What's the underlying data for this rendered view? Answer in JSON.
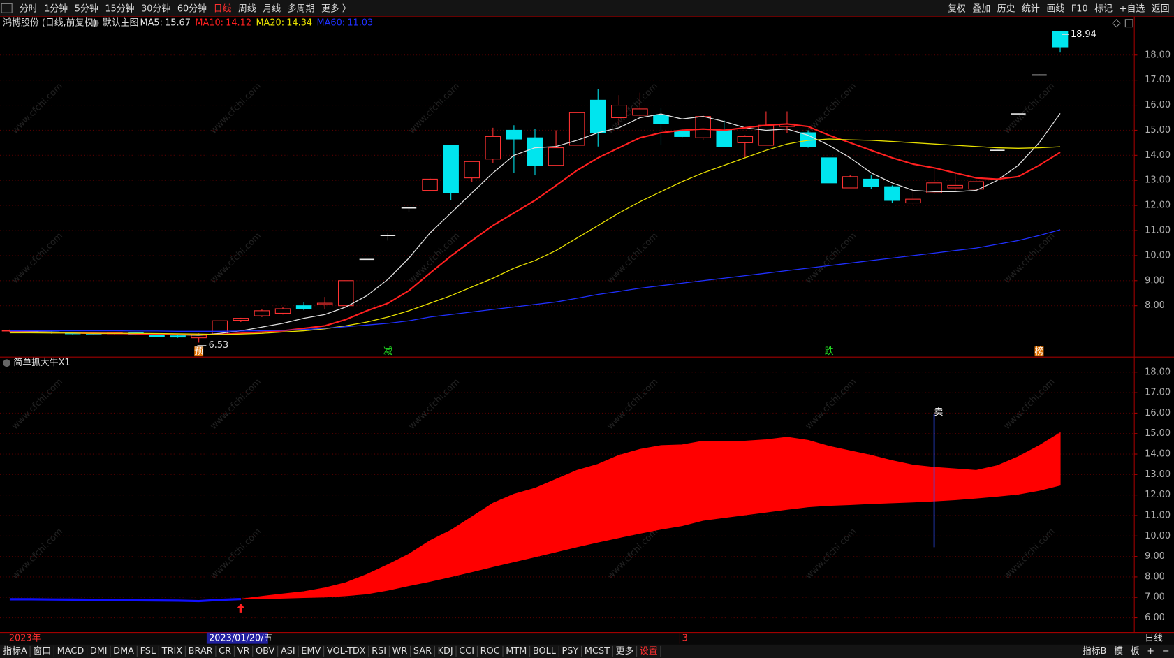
{
  "toolbar": {
    "left": [
      "分时",
      "1分钟",
      "5分钟",
      "15分钟",
      "30分钟",
      "60分钟",
      "日线",
      "周线",
      "月线",
      "多周期",
      "更多 〉"
    ],
    "active": "日线",
    "right": [
      "复权",
      "叠加",
      "历史",
      "统计",
      "画线",
      "F10",
      "标记",
      "+自选",
      "返回"
    ]
  },
  "watermark": "www.cfchi.com",
  "chart_data": [
    {
      "type": "candlestick",
      "title": "鸿博股份 (日线,前复权)",
      "subtitle": "默认主图",
      "open": [
        7.0,
        7.0,
        6.95,
        6.92,
        6.9,
        6.88,
        6.92,
        6.85,
        6.8,
        6.72,
        6.88,
        7.42,
        7.6,
        7.7,
        8.0,
        8.05,
        8.0,
        9.85,
        10.8,
        11.9,
        12.6,
        14.4,
        13.1,
        13.85,
        15.0,
        14.7,
        13.6,
        14.4,
        16.2,
        15.5,
        15.6,
        15.6,
        14.95,
        14.7,
        15.0,
        14.5,
        14.4,
        15.15,
        14.9,
        13.9,
        12.7,
        13.05,
        12.75,
        12.1,
        12.5,
        12.7,
        12.65,
        14.2,
        15.65,
        17.2,
        18.94
      ],
      "high": [
        7.05,
        7.02,
        6.98,
        6.95,
        6.95,
        6.95,
        6.95,
        6.88,
        6.85,
        6.9,
        7.4,
        7.52,
        7.85,
        7.95,
        8.15,
        8.35,
        9.0,
        9.85,
        10.9,
        11.95,
        13.1,
        14.4,
        13.75,
        15.1,
        15.2,
        15.05,
        15.0,
        15.7,
        16.65,
        16.4,
        16.5,
        15.9,
        15.05,
        15.6,
        15.4,
        14.8,
        15.75,
        15.75,
        15.0,
        13.9,
        13.2,
        13.2,
        12.8,
        12.6,
        13.45,
        13.3,
        12.95,
        14.22,
        15.67,
        17.22,
        18.94
      ],
      "low": [
        6.95,
        6.92,
        6.88,
        6.85,
        6.85,
        6.85,
        6.82,
        6.75,
        6.72,
        6.53,
        6.83,
        7.35,
        7.55,
        7.65,
        7.82,
        7.85,
        7.95,
        9.85,
        10.6,
        11.75,
        12.6,
        12.2,
        12.95,
        13.7,
        13.3,
        13.2,
        13.6,
        14.4,
        14.35,
        15.2,
        15.55,
        14.4,
        14.7,
        14.6,
        14.35,
        13.9,
        14.4,
        14.9,
        14.3,
        12.9,
        12.7,
        12.65,
        12.1,
        12.0,
        12.45,
        12.6,
        12.55,
        14.2,
        15.65,
        17.2,
        18.1
      ],
      "close": [
        7.02,
        6.95,
        6.92,
        6.88,
        6.88,
        6.93,
        6.85,
        6.78,
        6.75,
        6.82,
        7.4,
        7.5,
        7.8,
        7.88,
        7.88,
        8.1,
        9.0,
        9.85,
        10.8,
        11.9,
        13.05,
        12.5,
        13.75,
        14.75,
        14.65,
        13.6,
        14.3,
        15.7,
        14.9,
        16.0,
        15.85,
        15.25,
        14.75,
        15.55,
        14.35,
        14.75,
        15.2,
        15.25,
        14.35,
        12.9,
        13.15,
        12.75,
        12.2,
        12.25,
        12.9,
        12.8,
        12.95,
        14.2,
        15.65,
        17.2,
        18.3
      ],
      "up_color": "#ff3232",
      "down_color": "#00e5ee",
      "flat_color": "#e8e8e8",
      "series": [
        {
          "name": "MA5:",
          "color": "#e0e0e0",
          "values": [
            6.98,
            6.97,
            6.95,
            6.93,
            6.91,
            6.9,
            6.89,
            6.87,
            6.84,
            6.82,
            6.9,
            7.0,
            7.15,
            7.3,
            7.5,
            7.65,
            7.95,
            8.4,
            9.05,
            9.9,
            10.9,
            11.7,
            12.5,
            13.3,
            14.0,
            14.3,
            14.35,
            14.6,
            14.9,
            15.1,
            15.5,
            15.65,
            15.45,
            15.55,
            15.35,
            15.1,
            15.0,
            15.05,
            14.8,
            14.4,
            13.9,
            13.3,
            12.9,
            12.6,
            12.55,
            12.55,
            12.6,
            13.0,
            13.6,
            14.5,
            15.67
          ]
        },
        {
          "name": "MA10:",
          "color": "#ff2020",
          "values": [
            6.95,
            6.94,
            6.93,
            6.92,
            6.9,
            6.9,
            6.88,
            6.87,
            6.86,
            6.85,
            6.85,
            6.9,
            6.95,
            7.0,
            7.1,
            7.2,
            7.45,
            7.8,
            8.1,
            8.6,
            9.3,
            9.98,
            10.6,
            11.2,
            11.7,
            12.2,
            12.8,
            13.4,
            13.9,
            14.3,
            14.7,
            14.9,
            15.0,
            15.05,
            15.0,
            15.1,
            15.2,
            15.25,
            15.15,
            14.8,
            14.5,
            14.2,
            13.9,
            13.65,
            13.5,
            13.3,
            13.1,
            13.05,
            13.15,
            13.6,
            14.12
          ]
        },
        {
          "name": "MA20:",
          "color": "#e8e000",
          "values": [
            6.92,
            6.92,
            6.91,
            6.91,
            6.9,
            6.9,
            6.9,
            6.89,
            6.88,
            6.87,
            6.85,
            6.87,
            6.9,
            6.95,
            7.0,
            7.08,
            7.2,
            7.35,
            7.55,
            7.8,
            8.1,
            8.4,
            8.75,
            9.1,
            9.5,
            9.8,
            10.2,
            10.7,
            11.2,
            11.7,
            12.15,
            12.55,
            12.95,
            13.3,
            13.6,
            13.9,
            14.2,
            14.45,
            14.6,
            14.65,
            14.62,
            14.6,
            14.55,
            14.5,
            14.45,
            14.4,
            14.35,
            14.3,
            14.28,
            14.3,
            14.34
          ]
        },
        {
          "name": "MA60:",
          "color": "#2030ff",
          "values": [
            7.0,
            7.0,
            7.0,
            7.0,
            7.0,
            7.0,
            6.99,
            6.99,
            6.98,
            6.98,
            6.98,
            6.99,
            7.0,
            7.02,
            7.05,
            7.1,
            7.16,
            7.23,
            7.3,
            7.4,
            7.55,
            7.65,
            7.75,
            7.85,
            7.95,
            8.05,
            8.15,
            8.3,
            8.45,
            8.57,
            8.7,
            8.8,
            8.9,
            9.0,
            9.1,
            9.2,
            9.3,
            9.4,
            9.5,
            9.6,
            9.7,
            9.8,
            9.9,
            10.0,
            10.1,
            10.2,
            10.3,
            10.45,
            10.6,
            10.8,
            11.03
          ]
        }
      ],
      "markers": [
        {
          "label": "预",
          "color": "#e07000",
          "boxed": true
        },
        {
          "label": "减",
          "color": "#22dd22",
          "boxed": false
        },
        {
          "label": "跌",
          "color": "#22dd22",
          "boxed": false
        },
        {
          "label": "榜",
          "color": "#e07000",
          "boxed": true
        }
      ],
      "ylim": [
        6.4,
        19.0
      ],
      "yticks": [
        {
          "value": 8,
          "label": "8.00"
        },
        {
          "value": 9,
          "label": "9.00"
        },
        {
          "value": 10,
          "label": "10.00"
        },
        {
          "value": 11,
          "label": "11.00"
        },
        {
          "value": 12,
          "label": "12.00"
        },
        {
          "value": 13,
          "label": "13.00"
        },
        {
          "value": 14,
          "label": "14.00"
        },
        {
          "value": 15,
          "label": "15.00"
        },
        {
          "value": 16,
          "label": "16.00"
        },
        {
          "value": 17,
          "label": "17.00"
        },
        {
          "value": 18,
          "label": "18.00"
        }
      ],
      "grid": true
    },
    {
      "type": "band",
      "title": "简单抓大牛X1",
      "line": [
        6.91,
        6.91,
        6.9,
        6.89,
        6.88,
        6.87,
        6.86,
        6.85,
        6.84,
        6.82,
        6.88,
        6.92,
        null,
        null,
        null,
        null,
        null,
        null,
        null,
        null,
        null,
        null,
        null,
        null,
        null,
        null,
        null,
        null,
        null,
        null,
        null,
        null,
        null,
        null,
        null,
        null,
        null,
        null,
        null,
        null,
        null,
        null,
        null,
        null,
        null,
        null,
        null,
        null,
        null,
        null,
        null
      ],
      "upper": [
        null,
        null,
        null,
        null,
        null,
        null,
        null,
        null,
        null,
        null,
        null,
        6.92,
        7.05,
        7.17,
        7.28,
        7.46,
        7.72,
        8.12,
        8.6,
        9.11,
        9.77,
        10.28,
        10.94,
        11.6,
        12.04,
        12.33,
        12.77,
        13.2,
        13.5,
        13.94,
        14.23,
        14.41,
        14.45,
        14.63,
        14.6,
        14.63,
        14.7,
        14.82,
        14.67,
        14.38,
        14.16,
        13.94,
        13.68,
        13.46,
        13.35,
        13.28,
        13.2,
        13.43,
        13.87,
        14.41,
        15.04
      ],
      "lower": [
        null,
        null,
        null,
        null,
        null,
        null,
        null,
        null,
        null,
        null,
        null,
        6.92,
        6.93,
        6.96,
        6.99,
        7.02,
        7.08,
        7.17,
        7.35,
        7.57,
        7.78,
        8.01,
        8.25,
        8.5,
        8.74,
        8.98,
        9.22,
        9.47,
        9.7,
        9.92,
        10.13,
        10.33,
        10.5,
        10.76,
        10.9,
        11.03,
        11.16,
        11.3,
        11.42,
        11.49,
        11.53,
        11.58,
        11.62,
        11.66,
        11.71,
        11.77,
        11.85,
        11.94,
        12.04,
        12.22,
        12.48
      ],
      "line_color": "#1010ff",
      "band_color": "#ff0000",
      "signals": [
        {
          "label": "卖",
          "high": 15.95,
          "low": 9.45,
          "color": "#3050ff"
        }
      ],
      "ylim": [
        5.1,
        18.7
      ],
      "yticks": [
        {
          "value": 6,
          "label": "6.00"
        },
        {
          "value": 7,
          "label": "7.00"
        },
        {
          "value": 8,
          "label": "8.00"
        },
        {
          "value": 9,
          "label": "9.00"
        },
        {
          "value": 10,
          "label": "10.00"
        },
        {
          "value": 11,
          "label": "11.00"
        },
        {
          "value": 12,
          "label": "12.00"
        },
        {
          "value": 13,
          "label": "13.00"
        },
        {
          "value": 14,
          "label": "14.00"
        },
        {
          "value": 15,
          "label": "15.00"
        },
        {
          "value": 16,
          "label": "16.00"
        },
        {
          "value": 17,
          "label": "17.00"
        },
        {
          "value": 18,
          "label": "18.00"
        }
      ],
      "grid": true
    }
  ],
  "date_bar": {
    "year": "2023年",
    "cursor": "2023/01/20/五",
    "mark": "3",
    "period": "日线"
  },
  "bottom_toolbar": {
    "left": [
      "指标A",
      "窗口",
      "MACD",
      "DMI",
      "DMA",
      "FSL",
      "TRIX",
      "BRAR",
      "CR",
      "VR",
      "OBV",
      "ASI",
      "EMV",
      "VOL-TDX",
      "RSI",
      "WR",
      "SAR",
      "KDJ",
      "CCI",
      "ROC",
      "MTM",
      "BOLL",
      "PSY",
      "MCST",
      "更多",
      "设置"
    ],
    "highlight": "设置",
    "right": [
      "指标B",
      "模",
      "板",
      "+",
      "−"
    ]
  }
}
